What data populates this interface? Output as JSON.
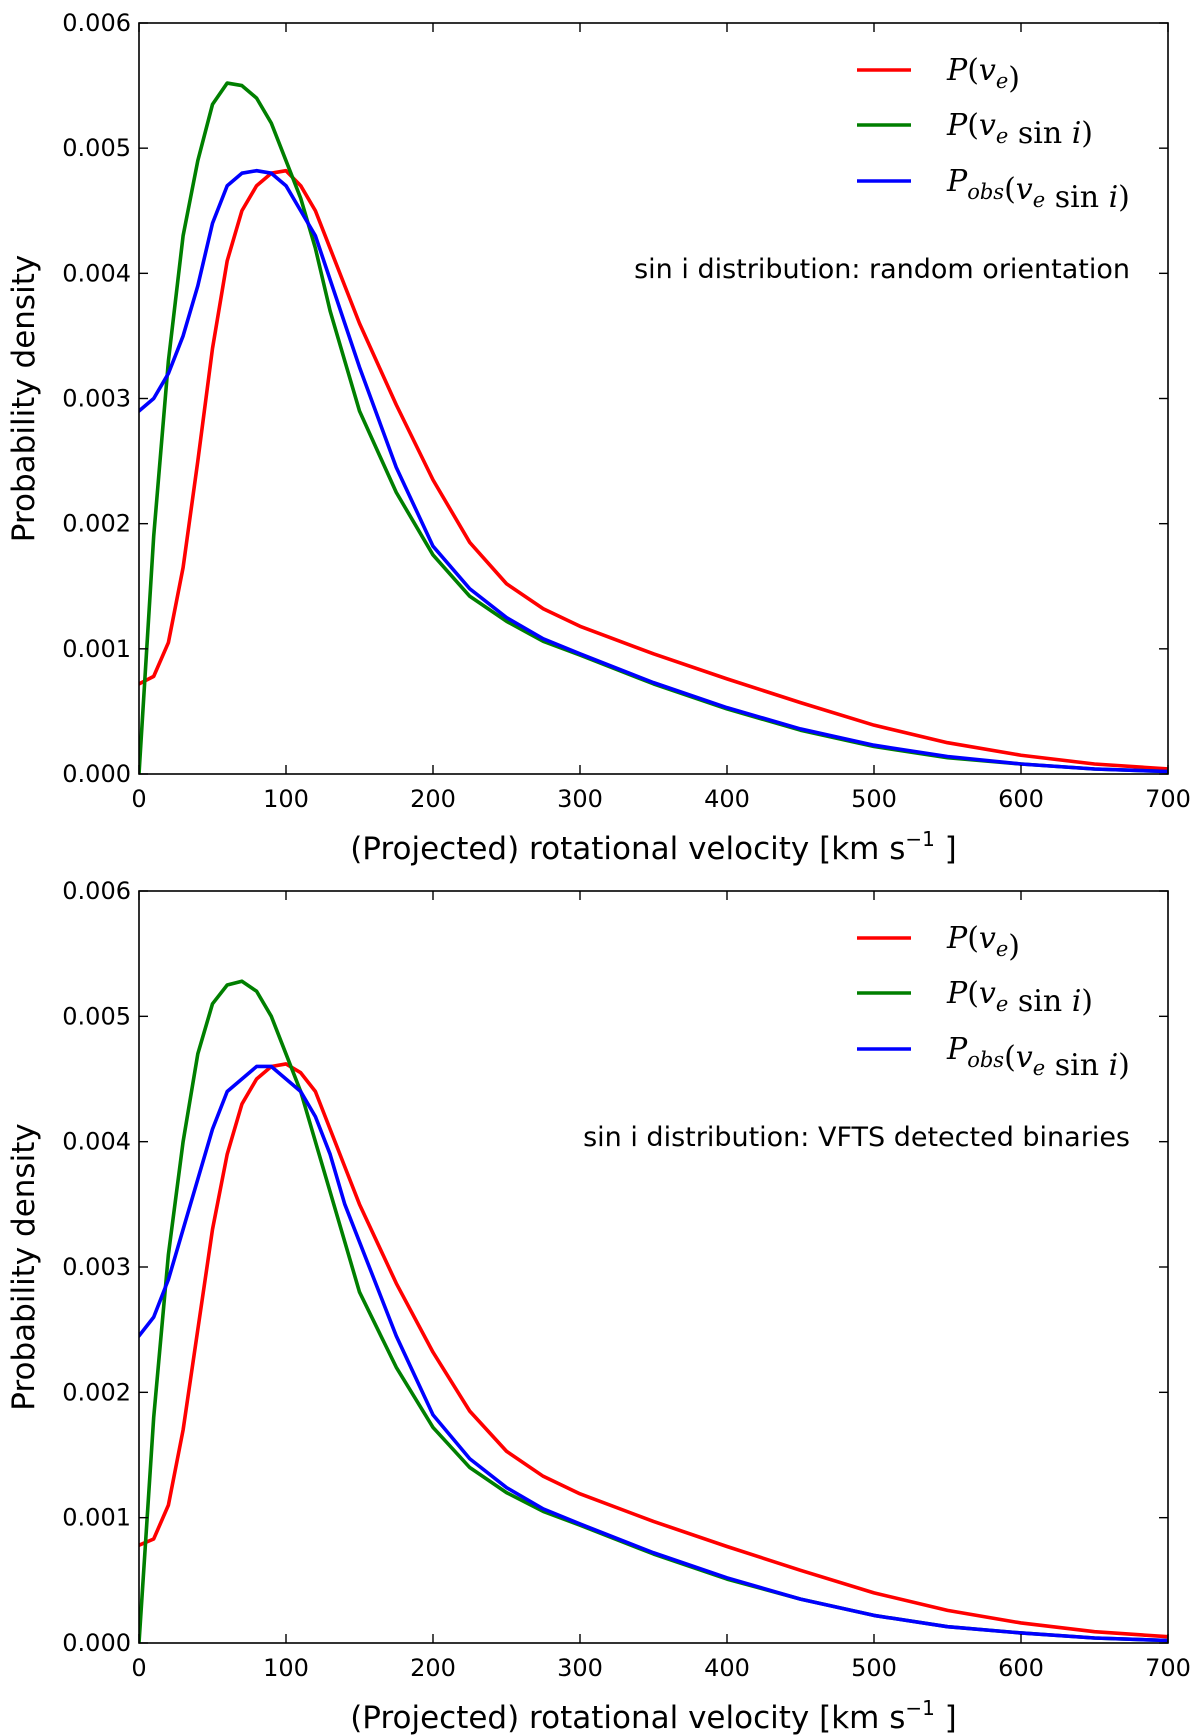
{
  "chart_data": [
    {
      "type": "line",
      "annotation": "sin i distribution: random orientation",
      "xlabel": "(Projected) rotational velocity [km s",
      "xlabel_sup": "−1",
      "xlabel_end": " ]",
      "ylabel": "Probability density",
      "xlim": [
        0,
        700
      ],
      "ylim": [
        0,
        0.006
      ],
      "xticks": [
        0,
        100,
        200,
        300,
        400,
        500,
        600,
        700
      ],
      "xtick_labels": [
        "0",
        "100",
        "200",
        "300",
        "400",
        "500",
        "600",
        "700"
      ],
      "yticks": [
        0,
        0.001,
        0.002,
        0.003,
        0.004,
        0.005,
        0.006
      ],
      "ytick_labels": [
        "0.000",
        "0.001",
        "0.002",
        "0.003",
        "0.004",
        "0.005",
        "0.006"
      ],
      "legend": {
        "position": "upper-right",
        "entries": [
          "P(v_e)",
          "P(v_e sin i)",
          "P_obs(v_e sin i)"
        ]
      },
      "x": [
        0,
        10,
        20,
        30,
        40,
        50,
        60,
        70,
        80,
        90,
        100,
        110,
        120,
        130,
        140,
        150,
        175,
        200,
        225,
        250,
        275,
        300,
        350,
        400,
        450,
        500,
        550,
        600,
        650,
        700
      ],
      "series": [
        {
          "name": "P(v_e)",
          "color": "#ff0000",
          "values": [
            0.00072,
            0.00078,
            0.00105,
            0.00165,
            0.0025,
            0.0034,
            0.0041,
            0.0045,
            0.0047,
            0.0048,
            0.00482,
            0.0047,
            0.0045,
            0.0042,
            0.0039,
            0.0036,
            0.00295,
            0.00235,
            0.00185,
            0.00152,
            0.00132,
            0.00118,
            0.00096,
            0.00076,
            0.00057,
            0.00039,
            0.00025,
            0.00015,
            8e-05,
            4e-05
          ]
        },
        {
          "name": "P(v_e sin i)",
          "color": "#007f00",
          "values": [
            0.0,
            0.0019,
            0.0033,
            0.0043,
            0.0049,
            0.00535,
            0.00552,
            0.0055,
            0.0054,
            0.0052,
            0.0049,
            0.0046,
            0.0042,
            0.0037,
            0.0033,
            0.0029,
            0.00225,
            0.00175,
            0.00142,
            0.00122,
            0.00106,
            0.00095,
            0.00072,
            0.00052,
            0.00035,
            0.00022,
            0.00013,
            8e-05,
            4e-05,
            2e-05
          ]
        },
        {
          "name": "P_obs(v_e sin i)",
          "color": "#0000ff",
          "values": [
            0.0029,
            0.003,
            0.0032,
            0.0035,
            0.0039,
            0.0044,
            0.0047,
            0.0048,
            0.00482,
            0.0048,
            0.0047,
            0.0045,
            0.0043,
            0.00395,
            0.0036,
            0.00325,
            0.00245,
            0.00182,
            0.00148,
            0.00125,
            0.00108,
            0.00096,
            0.00073,
            0.00053,
            0.00036,
            0.00023,
            0.00014,
            8e-05,
            4e-05,
            2e-05
          ]
        }
      ]
    },
    {
      "type": "line",
      "annotation": "sin i distribution: VFTS detected binaries",
      "xlabel": "(Projected) rotational velocity [km s",
      "xlabel_sup": "−1",
      "xlabel_end": " ]",
      "ylabel": "Probability density",
      "xlim": [
        0,
        700
      ],
      "ylim": [
        0,
        0.006
      ],
      "xticks": [
        0,
        100,
        200,
        300,
        400,
        500,
        600,
        700
      ],
      "xtick_labels": [
        "0",
        "100",
        "200",
        "300",
        "400",
        "500",
        "600",
        "700"
      ],
      "yticks": [
        0,
        0.001,
        0.002,
        0.003,
        0.004,
        0.005,
        0.006
      ],
      "ytick_labels": [
        "0.000",
        "0.001",
        "0.002",
        "0.003",
        "0.004",
        "0.005",
        "0.006"
      ],
      "legend": {
        "position": "upper-right",
        "entries": [
          "P(v_e)",
          "P(v_e sin i)",
          "P_obs(v_e sin i)"
        ]
      },
      "x": [
        0,
        10,
        20,
        30,
        40,
        50,
        60,
        70,
        80,
        90,
        100,
        110,
        120,
        130,
        140,
        150,
        175,
        200,
        225,
        250,
        275,
        300,
        350,
        400,
        450,
        500,
        550,
        600,
        650,
        700
      ],
      "series": [
        {
          "name": "P(v_e)",
          "color": "#ff0000",
          "values": [
            0.00078,
            0.00083,
            0.0011,
            0.0017,
            0.0025,
            0.0033,
            0.0039,
            0.0043,
            0.0045,
            0.0046,
            0.00462,
            0.00455,
            0.0044,
            0.0041,
            0.0038,
            0.0035,
            0.00287,
            0.00232,
            0.00185,
            0.00153,
            0.00133,
            0.00119,
            0.00097,
            0.00077,
            0.00058,
            0.0004,
            0.00026,
            0.00016,
            9e-05,
            5e-05
          ]
        },
        {
          "name": "P(v_e sin i)",
          "color": "#007f00",
          "values": [
            0.0,
            0.0018,
            0.0031,
            0.004,
            0.0047,
            0.0051,
            0.00525,
            0.00528,
            0.0052,
            0.005,
            0.0047,
            0.0044,
            0.004,
            0.0036,
            0.0032,
            0.0028,
            0.0022,
            0.00172,
            0.0014,
            0.0012,
            0.00105,
            0.00094,
            0.00071,
            0.00051,
            0.00035,
            0.00022,
            0.00013,
            8e-05,
            4e-05,
            2e-05
          ]
        },
        {
          "name": "P_obs(v_e sin i)",
          "color": "#0000ff",
          "values": [
            0.00245,
            0.0026,
            0.0029,
            0.0033,
            0.0037,
            0.0041,
            0.0044,
            0.0045,
            0.0046,
            0.0046,
            0.0045,
            0.0044,
            0.0042,
            0.0039,
            0.0035,
            0.0032,
            0.00245,
            0.00182,
            0.00147,
            0.00124,
            0.00107,
            0.00095,
            0.00072,
            0.00052,
            0.00035,
            0.00022,
            0.00013,
            8e-05,
            4e-05,
            2e-05
          ]
        }
      ]
    }
  ]
}
